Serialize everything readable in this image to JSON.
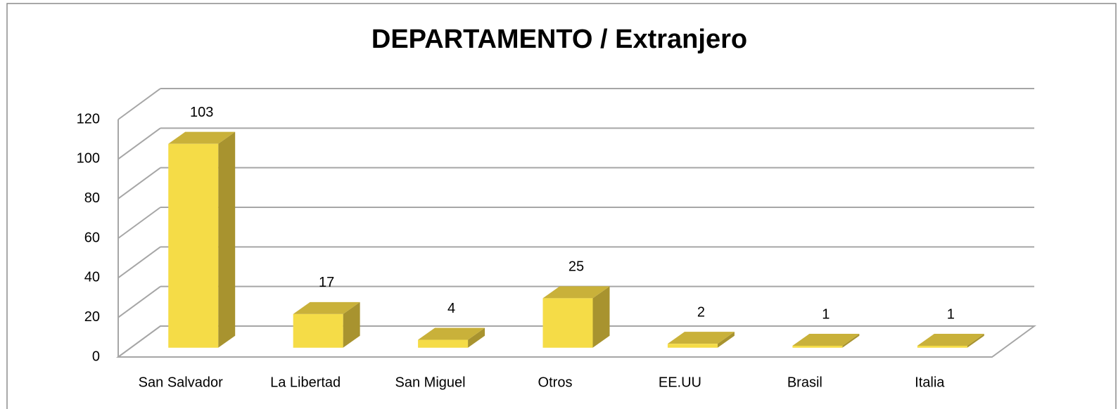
{
  "chart_data": {
    "type": "bar3d",
    "title": "DEPARTAMENTO / Extranjero",
    "categories": [
      "San Salvador",
      "La Libertad",
      "San Miguel",
      "Otros",
      "EE.UU",
      "Brasil",
      "Italia"
    ],
    "values": [
      103,
      17,
      4,
      25,
      2,
      1,
      1
    ],
    "color": "#f5dc47",
    "ylim": [
      0,
      120
    ],
    "yticks": [
      0,
      20,
      40,
      60,
      80,
      100,
      120
    ],
    "grid": true
  }
}
